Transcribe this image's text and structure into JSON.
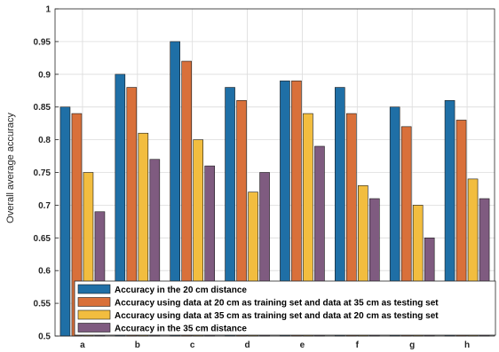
{
  "chart_data": {
    "type": "bar",
    "title": "",
    "xlabel": "",
    "ylabel": "Overall average accuracy",
    "ylim": [
      0.5,
      1.0
    ],
    "yticks": [
      "0.5",
      "0.55",
      "0.6",
      "0.65",
      "0.7",
      "0.75",
      "0.8",
      "0.85",
      "0.9",
      "0.95",
      "1"
    ],
    "categories": [
      "a",
      "b",
      "c",
      "d",
      "e",
      "f",
      "g",
      "h"
    ],
    "grid": true,
    "legend_position": "bottom-center",
    "series": [
      {
        "name": "Accuracy in the 20 cm distance",
        "color": "#1f6fa6",
        "values": [
          0.85,
          0.9,
          0.95,
          0.88,
          0.89,
          0.88,
          0.85,
          0.86
        ]
      },
      {
        "name": "Accuracy using data at 20 cm as training set and data at 35 cm as testing set",
        "color": "#d9703a",
        "values": [
          0.84,
          0.88,
          0.92,
          0.86,
          0.89,
          0.84,
          0.82,
          0.83
        ]
      },
      {
        "name": "Accuracy using data at 35 cm as training set and data at 20 cm as testing set",
        "color": "#f2bd3f",
        "values": [
          0.75,
          0.81,
          0.8,
          0.72,
          0.84,
          0.73,
          0.7,
          0.74
        ]
      },
      {
        "name": "Accuracy in the 35 cm distance",
        "color": "#7f5b80",
        "values": [
          0.69,
          0.77,
          0.76,
          0.75,
          0.79,
          0.71,
          0.65,
          0.71
        ]
      }
    ]
  }
}
